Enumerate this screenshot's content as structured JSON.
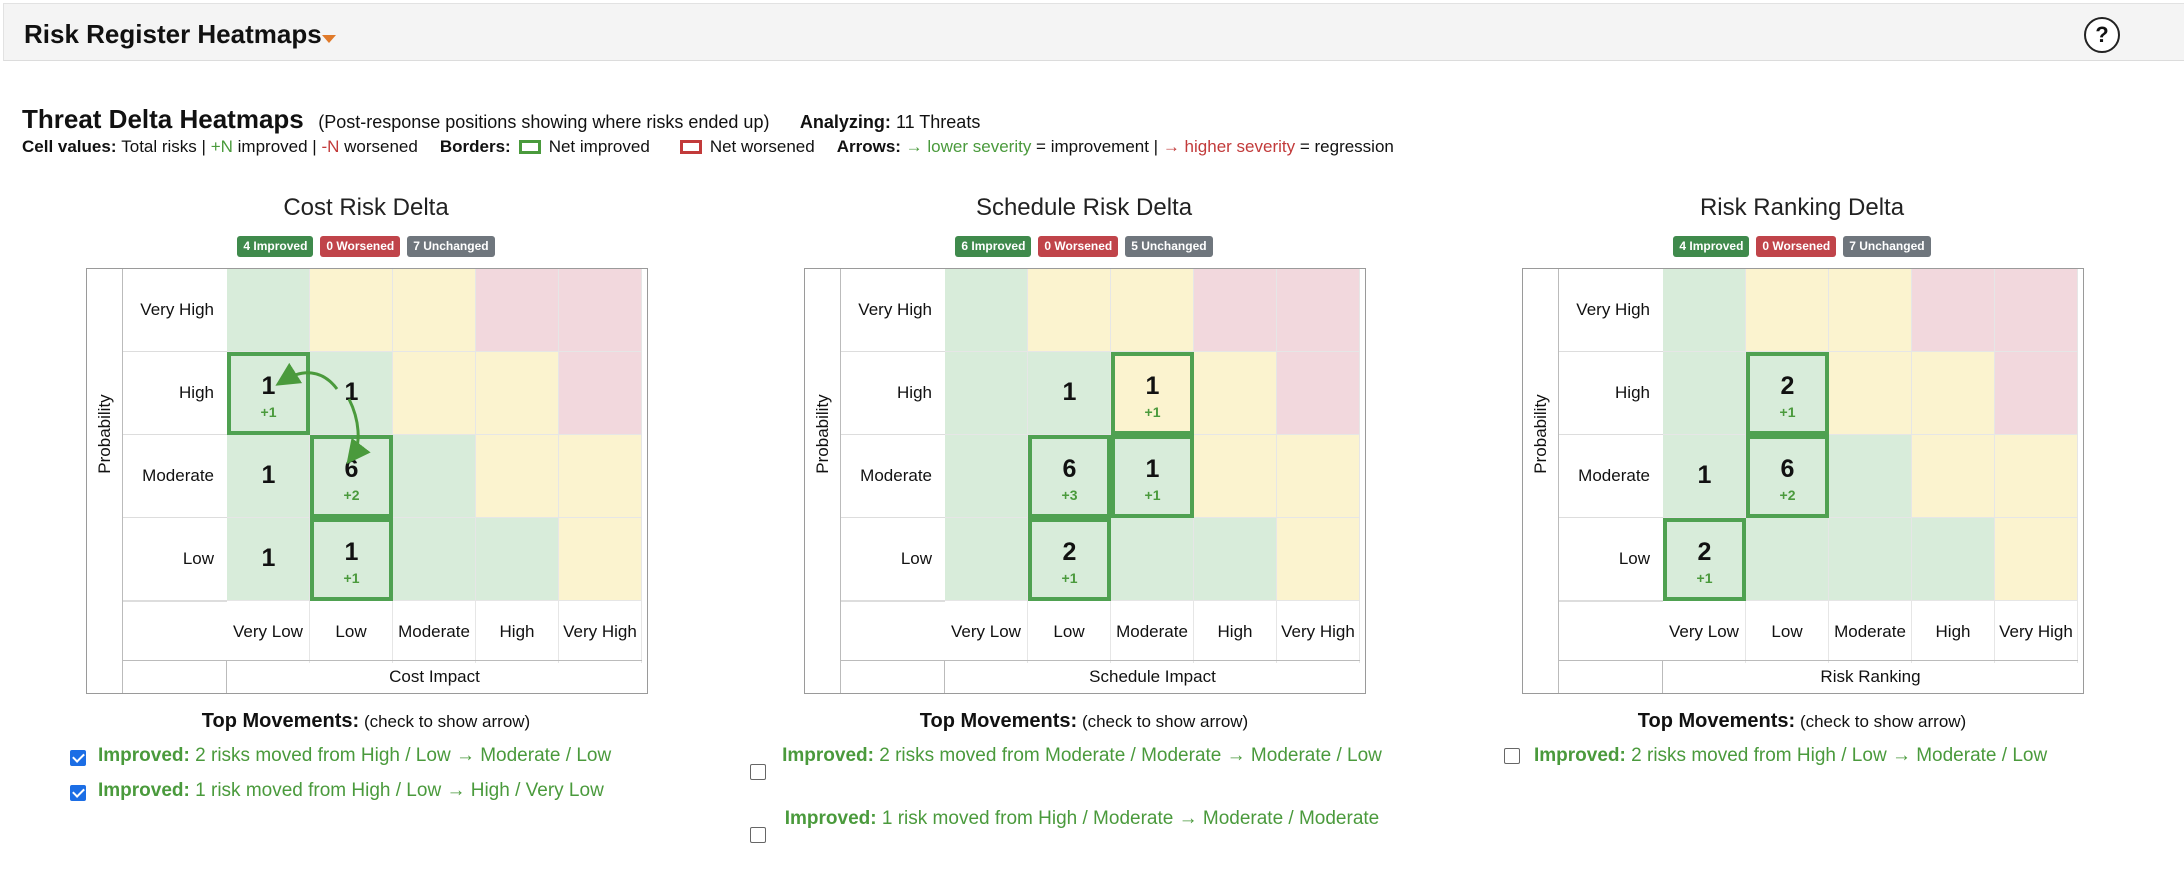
{
  "app": {
    "title": "Risk Register Heatmaps",
    "help_label": "?"
  },
  "heading": {
    "title": "Threat Delta Heatmaps",
    "subtitle": "(Post-response positions showing where risks ended up)",
    "analyzing_label": "Analyzing:",
    "analyzing_value": "11 Threats"
  },
  "legend": {
    "cell_values_label": "Cell values:",
    "total": "Total risks |",
    "improved_token": "+N",
    "improved_text": "improved |",
    "worsened_token": "-N",
    "worsened_text": "worsened",
    "borders_label": "Borders:",
    "net_improved": "Net improved",
    "net_worsened": "Net worsened",
    "arrows_label": "Arrows:",
    "lower_arrow": "→ lower severity",
    "improvement": "= improvement |",
    "higher_arrow": "→ higher severity",
    "regression": "= regression"
  },
  "colors": {
    "green": "#d8ecda",
    "yellow": "#fbf3cf",
    "red": "#f2d8dd",
    "improved": "#4a9a3c",
    "worsened": "#c23a3a"
  },
  "panels": [
    {
      "title": "Cost Risk Delta",
      "badges": {
        "improved": "4 Improved",
        "worsened": "0 Worsened",
        "unchanged": "7 Unchanged"
      },
      "y_axis": "Probability",
      "x_axis": "Cost Impact",
      "rows": [
        "Very High",
        "High",
        "Moderate",
        "Low"
      ],
      "cols": [
        "Very Low",
        "Low",
        "Moderate",
        "High",
        "Very High"
      ],
      "colors": [
        [
          "g",
          "y",
          "y",
          "r",
          "r"
        ],
        [
          "g",
          "g",
          "y",
          "y",
          "r"
        ],
        [
          "g",
          "g",
          "g",
          "y",
          "y"
        ],
        [
          "g",
          "g",
          "g",
          "g",
          "y"
        ]
      ],
      "cells": [
        {
          "r": 1,
          "c": 0,
          "value": "1",
          "delta": "+1",
          "border": true
        },
        {
          "r": 1,
          "c": 1,
          "value": "1",
          "delta": "",
          "border": false
        },
        {
          "r": 2,
          "c": 0,
          "value": "1",
          "delta": "",
          "border": false
        },
        {
          "r": 2,
          "c": 1,
          "value": "6",
          "delta": "+2",
          "border": true
        },
        {
          "r": 3,
          "c": 0,
          "value": "1",
          "delta": "",
          "border": false
        },
        {
          "r": 3,
          "c": 1,
          "value": "1",
          "delta": "+1",
          "border": true
        }
      ],
      "movements_title": "Top Movements:",
      "movements_hint": "(check to show arrow)",
      "movements": [
        {
          "label": "Improved:",
          "text": "2 risks moved from High / Low → Moderate / Low",
          "checked": true
        },
        {
          "label": "Improved:",
          "text": "1 risk moved from High / Low → High / Very Low",
          "checked": true
        }
      ]
    },
    {
      "title": "Schedule Risk Delta",
      "badges": {
        "improved": "6 Improved",
        "worsened": "0 Worsened",
        "unchanged": "5 Unchanged"
      },
      "y_axis": "Probability",
      "x_axis": "Schedule Impact",
      "rows": [
        "Very High",
        "High",
        "Moderate",
        "Low"
      ],
      "cols": [
        "Very Low",
        "Low",
        "Moderate",
        "High",
        "Very High"
      ],
      "colors": [
        [
          "g",
          "y",
          "y",
          "r",
          "r"
        ],
        [
          "g",
          "g",
          "y",
          "y",
          "r"
        ],
        [
          "g",
          "g",
          "g",
          "y",
          "y"
        ],
        [
          "g",
          "g",
          "g",
          "g",
          "y"
        ]
      ],
      "cells": [
        {
          "r": 1,
          "c": 1,
          "value": "1",
          "delta": "",
          "border": false
        },
        {
          "r": 1,
          "c": 2,
          "value": "1",
          "delta": "+1",
          "border": true
        },
        {
          "r": 2,
          "c": 1,
          "value": "6",
          "delta": "+3",
          "border": true
        },
        {
          "r": 2,
          "c": 2,
          "value": "1",
          "delta": "+1",
          "border": true
        },
        {
          "r": 3,
          "c": 1,
          "value": "2",
          "delta": "+1",
          "border": true
        }
      ],
      "movements_title": "Top Movements:",
      "movements_hint": "(check to show arrow)",
      "movements": [
        {
          "label": "Improved:",
          "text": "2 risks moved from Moderate / Moderate → Moderate / Low",
          "checked": false
        },
        {
          "label": "Improved:",
          "text": "1 risk moved from High / Moderate → Moderate / Moderate",
          "checked": false
        }
      ]
    },
    {
      "title": "Risk Ranking Delta",
      "badges": {
        "improved": "4 Improved",
        "worsened": "0 Worsened",
        "unchanged": "7 Unchanged"
      },
      "y_axis": "Probability",
      "x_axis": "Risk Ranking",
      "rows": [
        "Very High",
        "High",
        "Moderate",
        "Low"
      ],
      "cols": [
        "Very Low",
        "Low",
        "Moderate",
        "High",
        "Very High"
      ],
      "colors": [
        [
          "g",
          "y",
          "y",
          "r",
          "r"
        ],
        [
          "g",
          "g",
          "y",
          "y",
          "r"
        ],
        [
          "g",
          "g",
          "g",
          "y",
          "y"
        ],
        [
          "g",
          "g",
          "g",
          "g",
          "y"
        ]
      ],
      "cells": [
        {
          "r": 1,
          "c": 1,
          "value": "2",
          "delta": "+1",
          "border": true
        },
        {
          "r": 2,
          "c": 0,
          "value": "1",
          "delta": "",
          "border": false
        },
        {
          "r": 2,
          "c": 1,
          "value": "6",
          "delta": "+2",
          "border": true
        },
        {
          "r": 3,
          "c": 0,
          "value": "2",
          "delta": "+1",
          "border": true
        }
      ],
      "movements_title": "Top Movements:",
      "movements_hint": "(check to show arrow)",
      "movements": [
        {
          "label": "Improved:",
          "text": "2 risks moved from High / Low → Moderate / Low",
          "checked": false
        }
      ]
    }
  ]
}
